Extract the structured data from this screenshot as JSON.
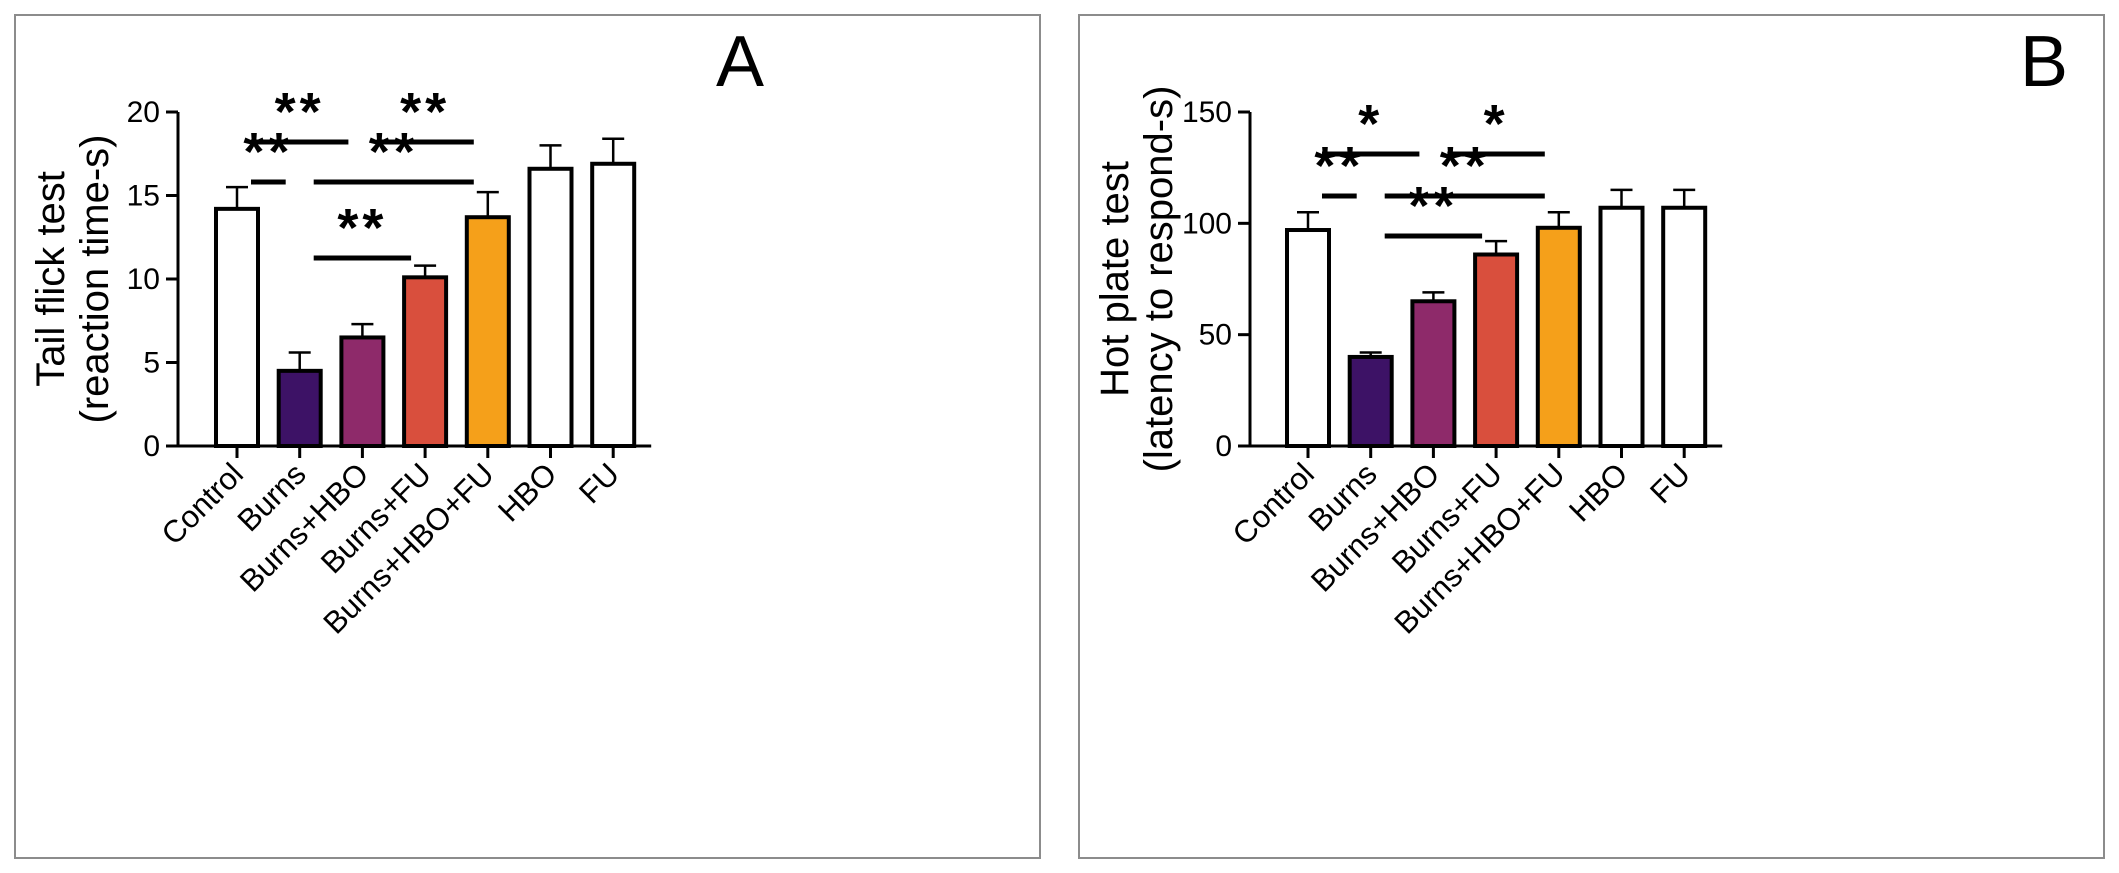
{
  "chart_data": [
    {
      "type": "bar",
      "panel_label": "A",
      "title": "",
      "xlabel": "",
      "ylabel": "Tail flick test",
      "ylabel_line2": "(reaction time-s)",
      "categories": [
        "Control",
        "Burns",
        "Burns+HBO",
        "Burns+FU",
        "Burns+HBO+FU",
        "HBO",
        "FU"
      ],
      "values": [
        14.2,
        4.5,
        6.5,
        10.1,
        13.7,
        16.6,
        16.9
      ],
      "errors": [
        1.3,
        1.1,
        0.8,
        0.7,
        1.5,
        1.4,
        1.5
      ],
      "colors": [
        "#ffffff",
        "#3d1266",
        "#8e2a6a",
        "#d94f3d",
        "#f5a01a",
        "#ffffff",
        "#ffffff"
      ],
      "ylim": [
        0,
        20
      ],
      "yticks": [
        0,
        5,
        10,
        15,
        20
      ],
      "significance": [
        {
          "from": 0,
          "to": 1,
          "label": "**"
        },
        {
          "from": 0,
          "to": 2,
          "label": "**"
        },
        {
          "from": 2,
          "to": 4,
          "label": "**"
        },
        {
          "from": 1,
          "to": 4,
          "label": "**"
        },
        {
          "from": 1,
          "to": 3,
          "label": "**"
        }
      ]
    },
    {
      "type": "bar",
      "panel_label": "B",
      "title": "",
      "xlabel": "",
      "ylabel": "Hot plate test",
      "ylabel_line2": "(latency to respond-s)",
      "categories": [
        "Control",
        "Burns",
        "Burns+HBO",
        "Burns+FU",
        "Burns+HBO+FU",
        "HBO",
        "FU"
      ],
      "values": [
        97,
        40,
        65,
        86,
        98,
        107,
        107
      ],
      "errors": [
        8,
        2,
        4,
        6,
        7,
        8,
        8
      ],
      "colors": [
        "#ffffff",
        "#3d1266",
        "#8e2a6a",
        "#d94f3d",
        "#f5a01a",
        "#ffffff",
        "#ffffff"
      ],
      "ylim": [
        0,
        150
      ],
      "yticks": [
        0,
        50,
        100,
        150
      ],
      "significance": [
        {
          "from": 0,
          "to": 1,
          "label": "**"
        },
        {
          "from": 0,
          "to": 2,
          "label": "*"
        },
        {
          "from": 2,
          "to": 4,
          "label": "*"
        },
        {
          "from": 1,
          "to": 4,
          "label": "**"
        },
        {
          "from": 1,
          "to": 3,
          "label": "**"
        }
      ]
    }
  ]
}
